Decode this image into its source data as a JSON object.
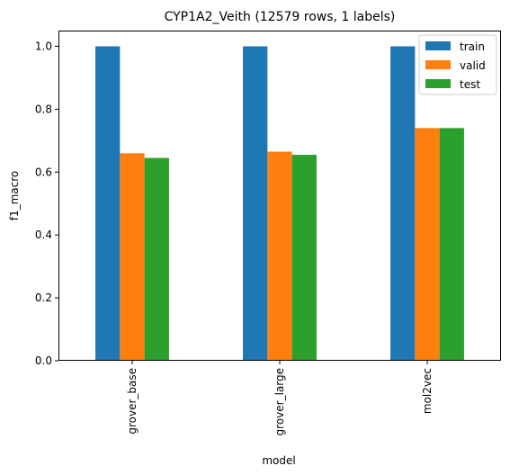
{
  "chart_data": {
    "type": "bar",
    "title": "CYP1A2_Veith (12579 rows, 1 labels)",
    "xlabel": "model",
    "ylabel": "f1_macro",
    "categories": [
      "grover_base",
      "grover_large",
      "mol2vec"
    ],
    "series": [
      {
        "name": "train",
        "values": [
          1.0,
          1.0,
          1.0
        ],
        "color": "#1f77b4"
      },
      {
        "name": "valid",
        "values": [
          0.66,
          0.665,
          0.74
        ],
        "color": "#ff7f0e"
      },
      {
        "name": "test",
        "values": [
          0.645,
          0.655,
          0.74
        ],
        "color": "#2ca02c"
      }
    ],
    "ylim": [
      0,
      1.05
    ],
    "yticks": [
      "0.0",
      "0.2",
      "0.4",
      "0.6",
      "0.8",
      "1.0"
    ],
    "grid": false,
    "legend_position": "top-right"
  }
}
